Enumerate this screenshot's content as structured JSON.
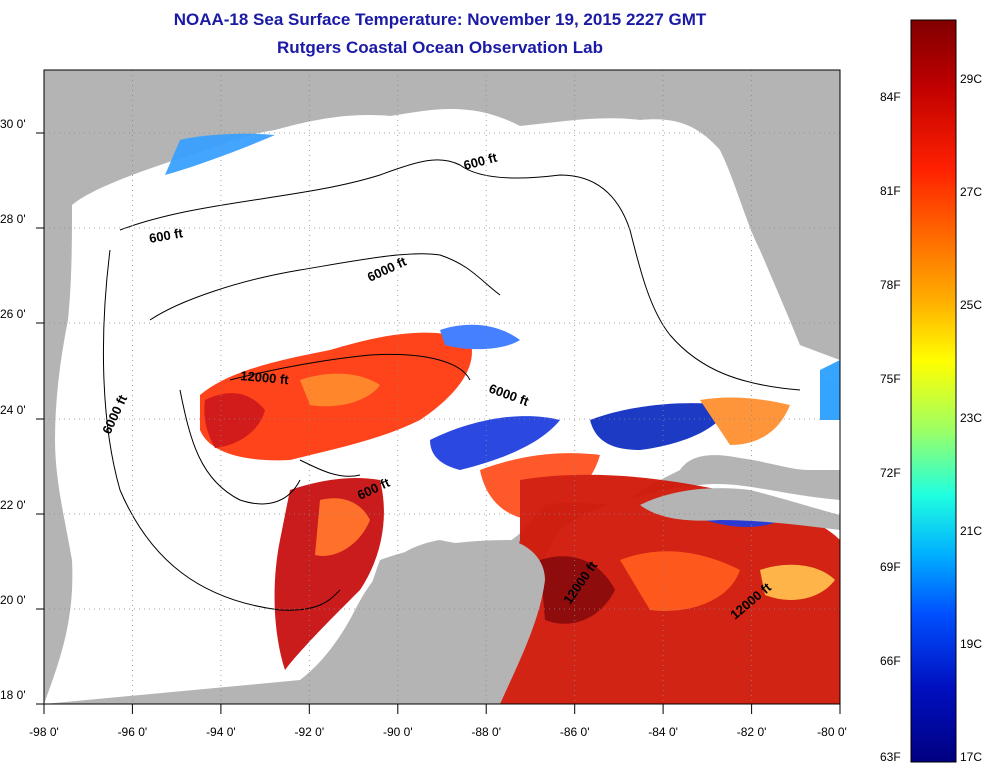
{
  "header": {
    "title": "NOAA-18 Sea Surface Temperature:  November 19, 2015 2227 GMT",
    "subtitle": "Rutgers Coastal Ocean Observation Lab"
  },
  "axes": {
    "lon_labels": [
      "-98 0'",
      "-96 0'",
      "-94 0'",
      "-92 0'",
      "-90 0'",
      "-88 0'",
      "-86 0'",
      "-84 0'",
      "-82 0'",
      "-80 0'"
    ],
    "lat_labels": [
      "30 0'",
      "28 0'",
      "26 0'",
      "24 0'",
      "22 0'",
      "20 0'",
      "18 0'"
    ],
    "lon_range": [
      -98,
      -80
    ],
    "lat_range": [
      18,
      31.3
    ]
  },
  "contours": {
    "labels": [
      "600 ft",
      "600 ft",
      "6000 ft",
      "6000 ft",
      "6000 ft",
      "12000 ft",
      "600 ft",
      "12000 ft",
      "12000 ft"
    ]
  },
  "colorbar": {
    "fahrenheit": [
      "84F",
      "81F",
      "78F",
      "75F",
      "72F",
      "69F",
      "66F",
      "63F"
    ],
    "celsius": [
      "29C",
      "27C",
      "25C",
      "23C",
      "21C",
      "19C",
      "17C"
    ],
    "colors": [
      "#800000",
      "#c00000",
      "#ff2000",
      "#ff7000",
      "#ffb000",
      "#ffff00",
      "#a0ff60",
      "#20ffe0",
      "#00b0ff",
      "#0050ff",
      "#0010c0",
      "#000080"
    ]
  },
  "map_colors": {
    "land": "#b4b4b4",
    "water": "#ffffff",
    "frame": "#000000"
  }
}
